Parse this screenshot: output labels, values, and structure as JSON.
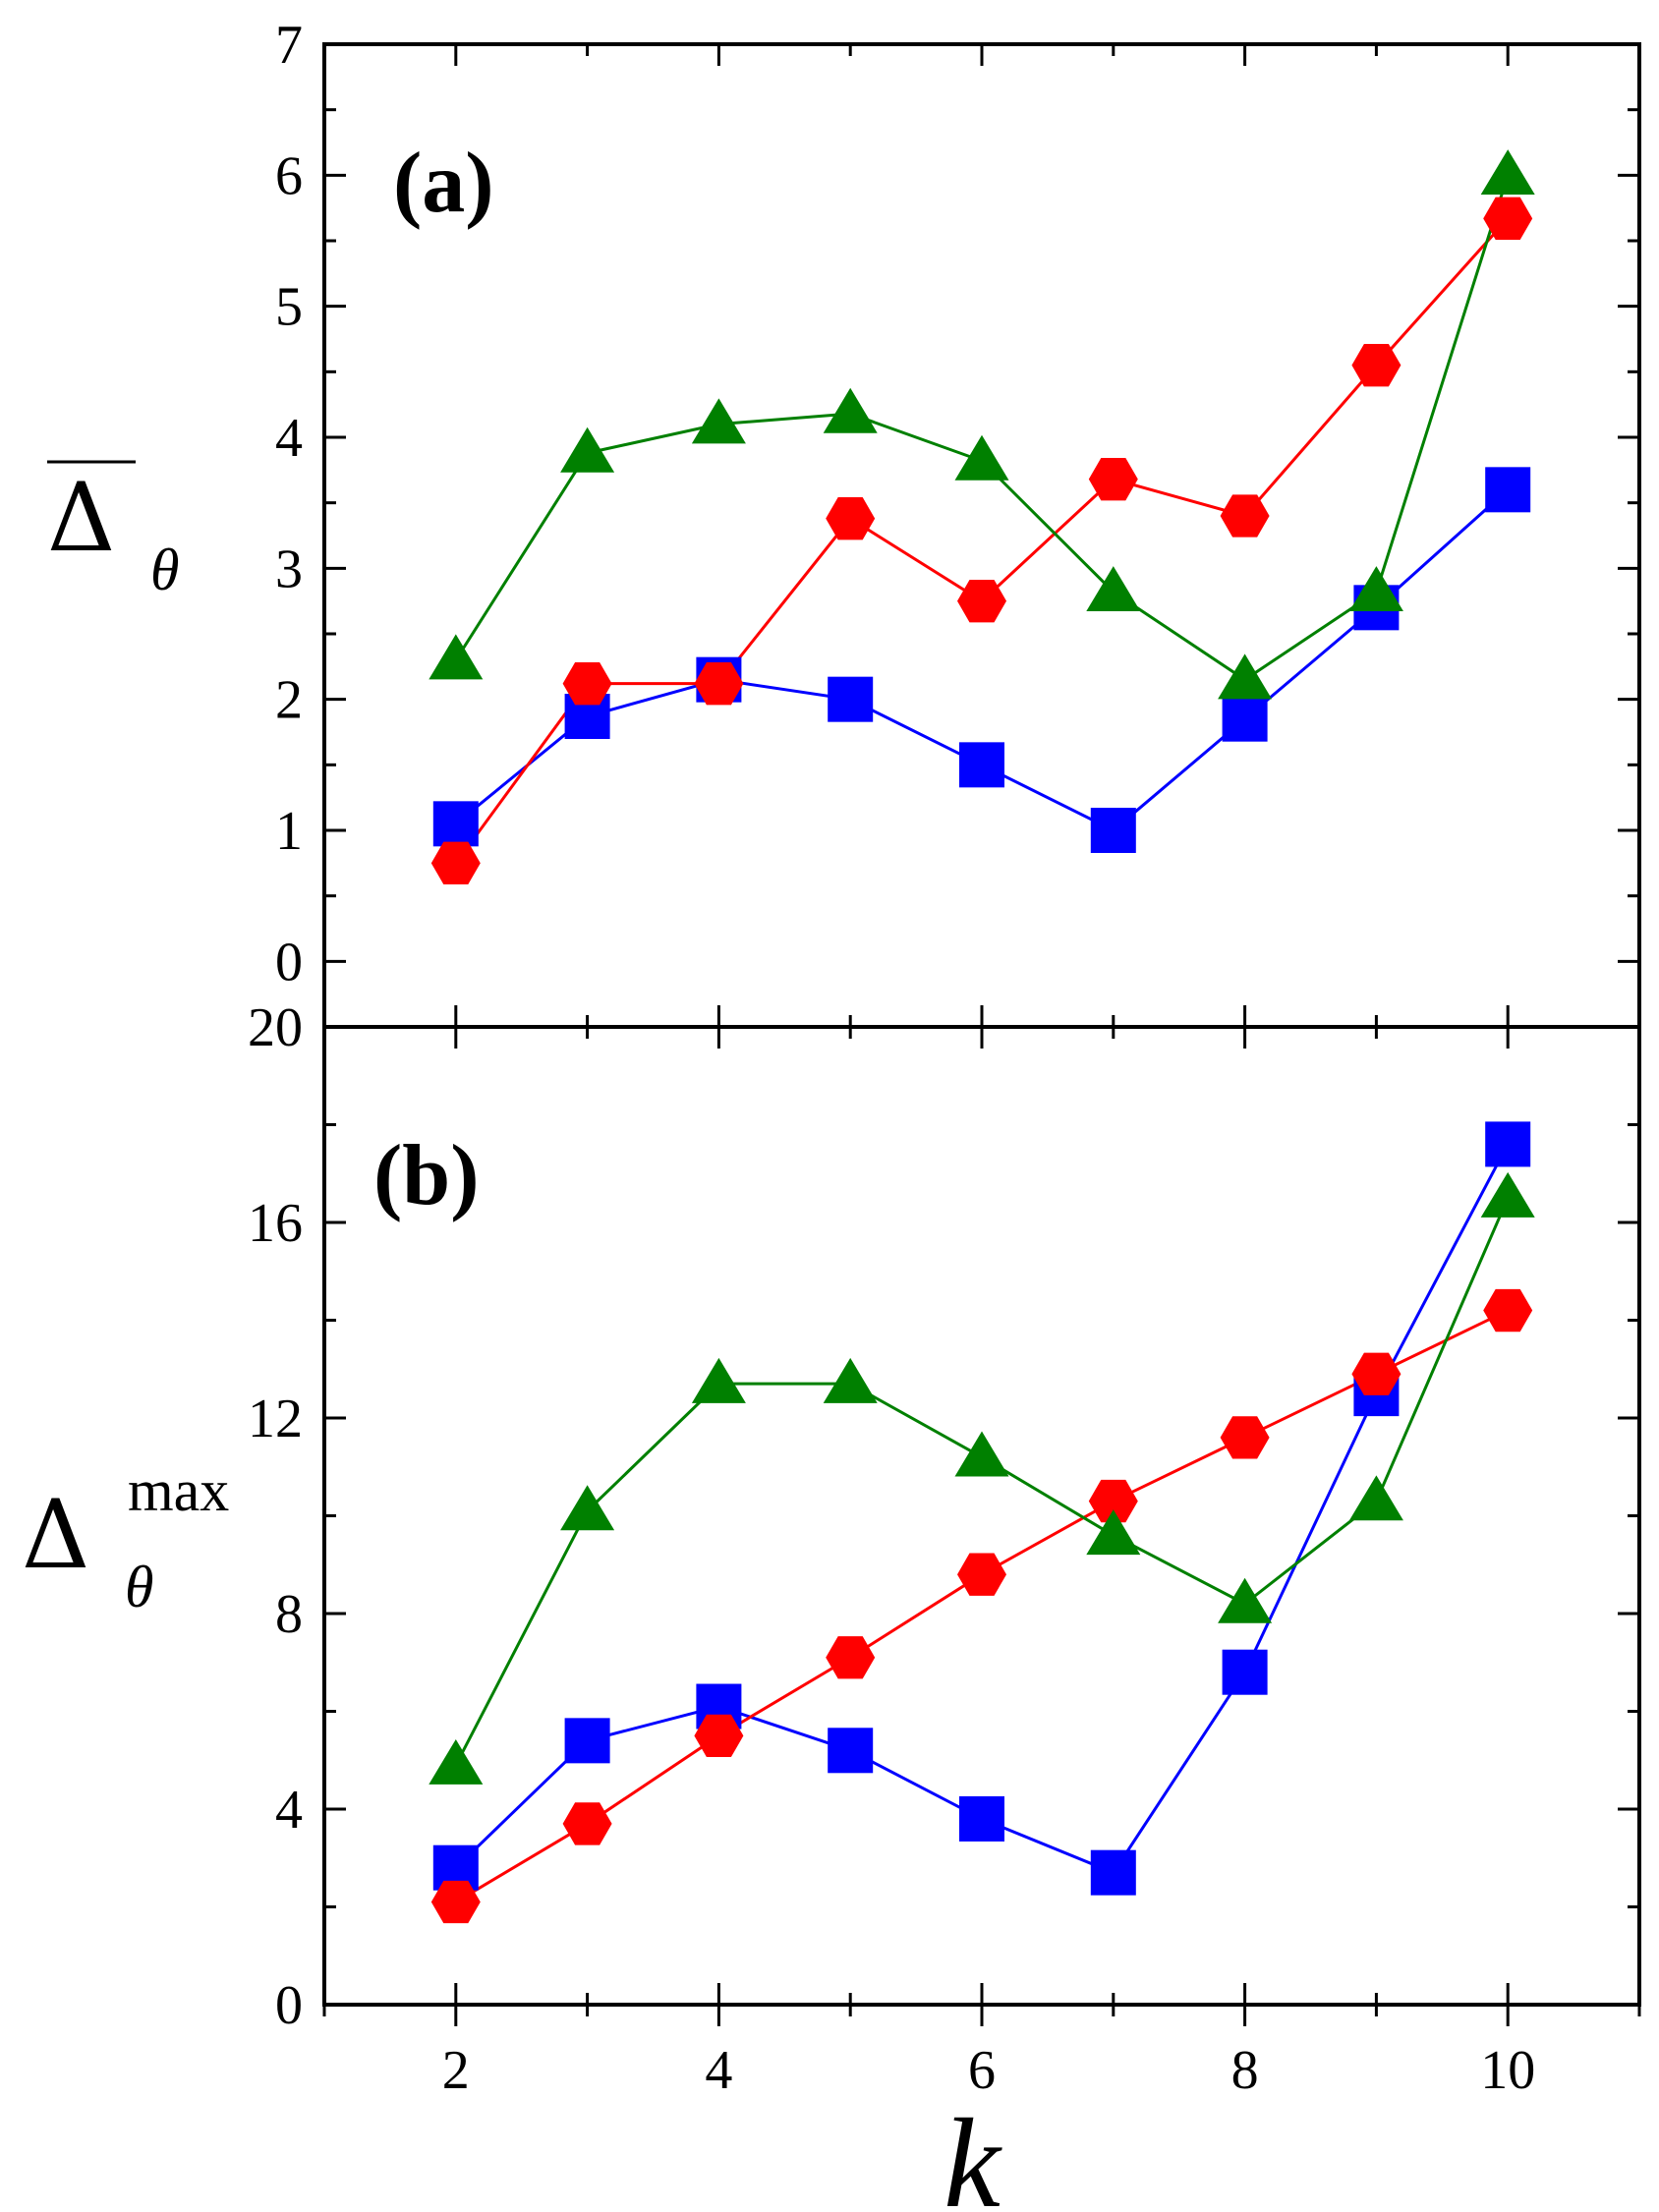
{
  "chart_data": [
    {
      "type": "line",
      "panel_label": "(a)",
      "ylabel": {
        "main": "Δ",
        "sub": "θ",
        "sup": "",
        "overbar": true
      },
      "xlabel": "k",
      "xlim": [
        1,
        11
      ],
      "ylim": [
        -0.5,
        7
      ],
      "x_ticks": [
        2,
        4,
        6,
        8,
        10
      ],
      "y_ticks": [
        0,
        1,
        2,
        3,
        4,
        5,
        6,
        7
      ],
      "x": [
        2,
        3,
        4,
        5,
        6,
        7,
        8,
        9,
        10
      ],
      "series": [
        {
          "color": "#0000ff",
          "marker": "square",
          "values": [
            1.05,
            1.87,
            2.15,
            2.0,
            1.5,
            1.0,
            1.85,
            2.7,
            3.6
          ]
        },
        {
          "color": "#ff0000",
          "marker": "hexagon",
          "values": [
            0.75,
            2.12,
            2.12,
            3.38,
            2.75,
            3.68,
            3.4,
            4.55,
            5.67
          ]
        },
        {
          "color": "#008000",
          "marker": "triangle",
          "values": [
            2.3,
            3.88,
            4.1,
            4.18,
            3.82,
            2.82,
            2.15,
            2.82,
            6.0
          ]
        }
      ]
    },
    {
      "type": "line",
      "panel_label": "(b)",
      "ylabel": {
        "main": "Δ",
        "sub": "θ",
        "sup": "max",
        "overbar": false
      },
      "xlabel": "k",
      "xlim": [
        1,
        11
      ],
      "ylim": [
        0,
        20
      ],
      "x_ticks": [
        2,
        4,
        6,
        8,
        10
      ],
      "y_ticks": [
        0,
        4,
        8,
        12,
        16,
        20
      ],
      "x": [
        2,
        3,
        4,
        5,
        6,
        7,
        8,
        9,
        10
      ],
      "series": [
        {
          "color": "#0000ff",
          "marker": "square",
          "values": [
            2.8,
            5.4,
            6.1,
            5.2,
            3.8,
            2.7,
            6.8,
            12.5,
            17.6
          ]
        },
        {
          "color": "#ff0000",
          "marker": "hexagon",
          "values": [
            2.1,
            3.7,
            5.5,
            7.1,
            8.8,
            10.3,
            11.6,
            12.9,
            14.2
          ]
        },
        {
          "color": "#008000",
          "marker": "triangle",
          "values": [
            4.9,
            10.1,
            12.7,
            12.7,
            11.2,
            9.6,
            8.2,
            10.3,
            16.5
          ]
        }
      ]
    }
  ]
}
